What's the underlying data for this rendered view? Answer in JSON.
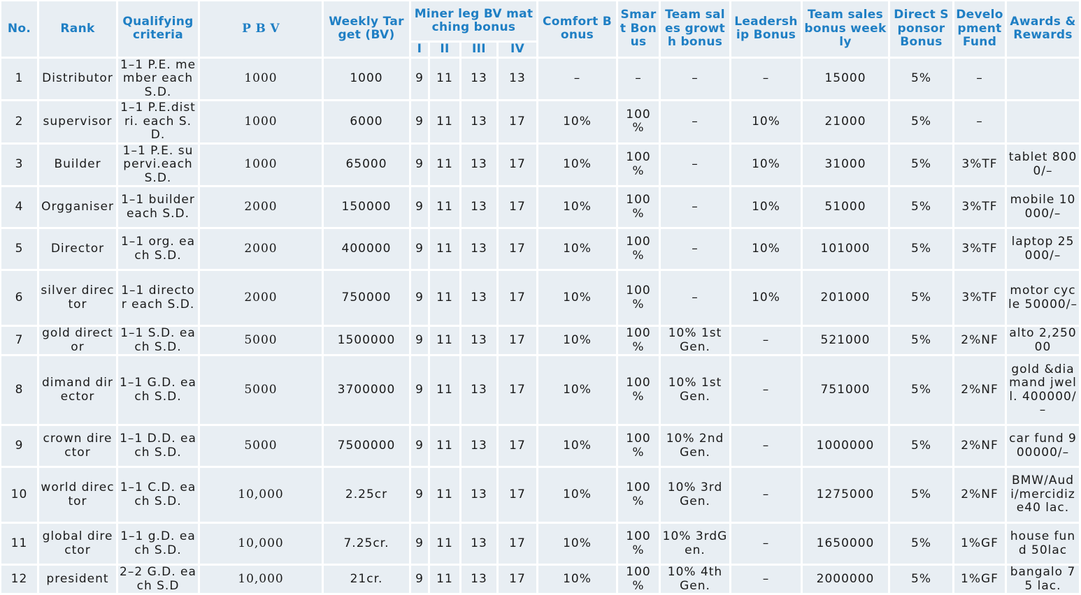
{
  "headers": {
    "no": "No.",
    "rank": "Rank",
    "qualifying": "Qualifying criteria",
    "pbv": "P B V",
    "weekly_target": "Weekly Target (BV)",
    "miner_leg": "Miner leg BV matching bonus",
    "leg_i": "I",
    "leg_ii": "II",
    "leg_iii": "III",
    "leg_iv": "IV",
    "comfort": "Comfort Bonus",
    "smart": "Smart Bonus",
    "team_growth": "Team sales growth bonus",
    "leadership": "Leadership Bonus",
    "team_weekly": "Team sales bonus weekly",
    "direct_sponsor": "Direct Sponsor Bonus",
    "development": "Development Fund",
    "awards": "Awards & Rewards"
  },
  "rows": [
    {
      "no": "1",
      "rank": "Distributor",
      "qual": "1–1 P.E. member each S.D.",
      "pbv": "1000",
      "target": "1000",
      "i": "9",
      "ii": "11",
      "iii": "13",
      "iv": "13",
      "comfort": "–",
      "smart": "–",
      "growth": "–",
      "leader": "–",
      "weekly": "15000",
      "sponsor": "5%",
      "fund": "–",
      "award": ""
    },
    {
      "no": "2",
      "rank": "supervisor",
      "qual": "1–1 P.E.distri. each S.D.",
      "pbv": "1000",
      "target": "6000",
      "i": "9",
      "ii": "11",
      "iii": "13",
      "iv": "17",
      "comfort": "10%",
      "smart": "100 %",
      "growth": "–",
      "leader": "10%",
      "weekly": "21000",
      "sponsor": "5%",
      "fund": "–",
      "award": ""
    },
    {
      "no": "3",
      "rank": "Builder",
      "qual": "1–1 P.E. supervi.each S.D.",
      "pbv": "1000",
      "target": "65000",
      "i": "9",
      "ii": "11",
      "iii": "13",
      "iv": "17",
      "comfort": "10%",
      "smart": "100 %",
      "growth": "–",
      "leader": "10%",
      "weekly": "31000",
      "sponsor": "5%",
      "fund": "3%TF",
      "award": "tablet 8000/–"
    },
    {
      "no": "4",
      "rank": "Orgganiser",
      "qual": "1–1 builder each S.D.",
      "pbv": "2000",
      "target": "150000",
      "i": "9",
      "ii": "11",
      "iii": "13",
      "iv": "17",
      "comfort": "10%",
      "smart": "100 %",
      "growth": "–",
      "leader": "10%",
      "weekly": "51000",
      "sponsor": "5%",
      "fund": "3%TF",
      "award": "mobile 10000/–"
    },
    {
      "no": "5",
      "rank": "Director",
      "qual": "1–1 org. each S.D.",
      "pbv": "2000",
      "target": "400000",
      "i": "9",
      "ii": "11",
      "iii": "13",
      "iv": "17",
      "comfort": "10%",
      "smart": "100 %",
      "growth": "–",
      "leader": "10%",
      "weekly": "101000",
      "sponsor": "5%",
      "fund": "3%TF",
      "award": "laptop 25000/–"
    },
    {
      "no": "6",
      "rank": "silver director",
      "qual": "1–1 director each S.D.",
      "pbv": "2000",
      "target": "750000",
      "i": "9",
      "ii": "11",
      "iii": "13",
      "iv": "17",
      "comfort": "10%",
      "smart": "100 %",
      "growth": "–",
      "leader": "10%",
      "weekly": "201000",
      "sponsor": "5%",
      "fund": "3%TF",
      "award": "motor cycle 50000/–"
    },
    {
      "no": "7",
      "rank": "gold director",
      "qual": "1–1 S.D. each S.D.",
      "pbv": "5000",
      "target": "1500000",
      "i": "9",
      "ii": "11",
      "iii": "13",
      "iv": "17",
      "comfort": "10%",
      "smart": "100 %",
      "growth": "10% 1st Gen.",
      "leader": "–",
      "weekly": "521000",
      "sponsor": "5%",
      "fund": "2%NF",
      "award": "alto 2,25000"
    },
    {
      "no": "8",
      "rank": "dimand director",
      "qual": "1–1 G.D. each S.D.",
      "pbv": "5000",
      "target": "3700000",
      "i": "9",
      "ii": "11",
      "iii": "13",
      "iv": "17",
      "comfort": "10%",
      "smart": "100 %",
      "growth": "10% 1st Gen.",
      "leader": "–",
      "weekly": "751000",
      "sponsor": "5%",
      "fund": "2%NF",
      "award": "gold &diamand jwell. 400000/–"
    },
    {
      "no": "9",
      "rank": "crown director",
      "qual": "1–1  D.D. each S.D.",
      "pbv": "5000",
      "target": "7500000",
      "i": "9",
      "ii": "11",
      "iii": "13",
      "iv": "17",
      "comfort": "10%",
      "smart": "100 %",
      "growth": "10% 2nd Gen.",
      "leader": "–",
      "weekly": "1000000",
      "sponsor": "5%",
      "fund": "2%NF",
      "award": "car fund 900000/–"
    },
    {
      "no": "10",
      "rank": "world director",
      "qual": "1–1 C.D. each S.D.",
      "pbv": "10,000",
      "target": "2.25cr",
      "i": "9",
      "ii": "11",
      "iii": "13",
      "iv": "17",
      "comfort": "10%",
      "smart": "100 %",
      "growth": "10% 3rd Gen.",
      "leader": "–",
      "weekly": "1275000",
      "sponsor": "5%",
      "fund": "2%NF",
      "award": "BMW/Audi/mercidize40 lac."
    },
    {
      "no": "11",
      "rank": "global director",
      "qual": "1–1 g.D. each S.D.",
      "pbv": "10,000",
      "target": "7.25cr.",
      "i": "9",
      "ii": "11",
      "iii": "13",
      "iv": "17",
      "comfort": "10%",
      "smart": "100 %",
      "growth": "10% 3rdGen.",
      "leader": "–",
      "weekly": "1650000",
      "sponsor": "5%",
      "fund": "1%GF",
      "award": "house fund 50lac"
    },
    {
      "no": "12",
      "rank": "president",
      "qual": "2–2  G.D. each S.D",
      "pbv": "10,000",
      "target": "21cr.",
      "i": "9",
      "ii": "11",
      "iii": "13",
      "iv": "17",
      "comfort": "10%",
      "smart": "100 %",
      "growth": "10% 4th Gen.",
      "leader": "–",
      "weekly": "2000000",
      "sponsor": "5%",
      "fund": "1%GF",
      "award": "bangalo 75 lac."
    }
  ]
}
